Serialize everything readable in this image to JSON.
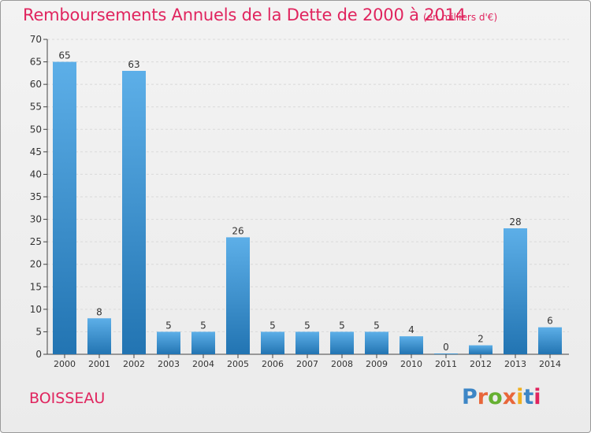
{
  "title": "Remboursements Annuels de la Dette de 2000 à 2014",
  "unit_note": "(en milliers d'€)",
  "commune": "BOISSEAU",
  "logo": {
    "text": "Proxiti",
    "letter_colors": [
      "#3d86c6",
      "#e8663a",
      "#66b032",
      "#e8663a",
      "#f0b020",
      "#3d86c6",
      "#e0245e"
    ]
  },
  "colors": {
    "bar_top": "#5dafe8",
    "bar_bottom": "#2274b2",
    "accent": "#e0245e"
  },
  "chart_data": {
    "type": "bar",
    "categories": [
      "2000",
      "2001",
      "2002",
      "2003",
      "2004",
      "2005",
      "2006",
      "2007",
      "2008",
      "2009",
      "2010",
      "2011",
      "2012",
      "2013",
      "2014"
    ],
    "values": [
      65,
      8,
      63,
      5,
      5,
      26,
      5,
      5,
      5,
      5,
      4,
      0,
      2,
      28,
      6
    ],
    "ylim": [
      0,
      70
    ],
    "yticks": [
      0,
      5,
      10,
      15,
      20,
      25,
      30,
      35,
      40,
      45,
      50,
      55,
      60,
      65,
      70
    ],
    "grid": true
  }
}
